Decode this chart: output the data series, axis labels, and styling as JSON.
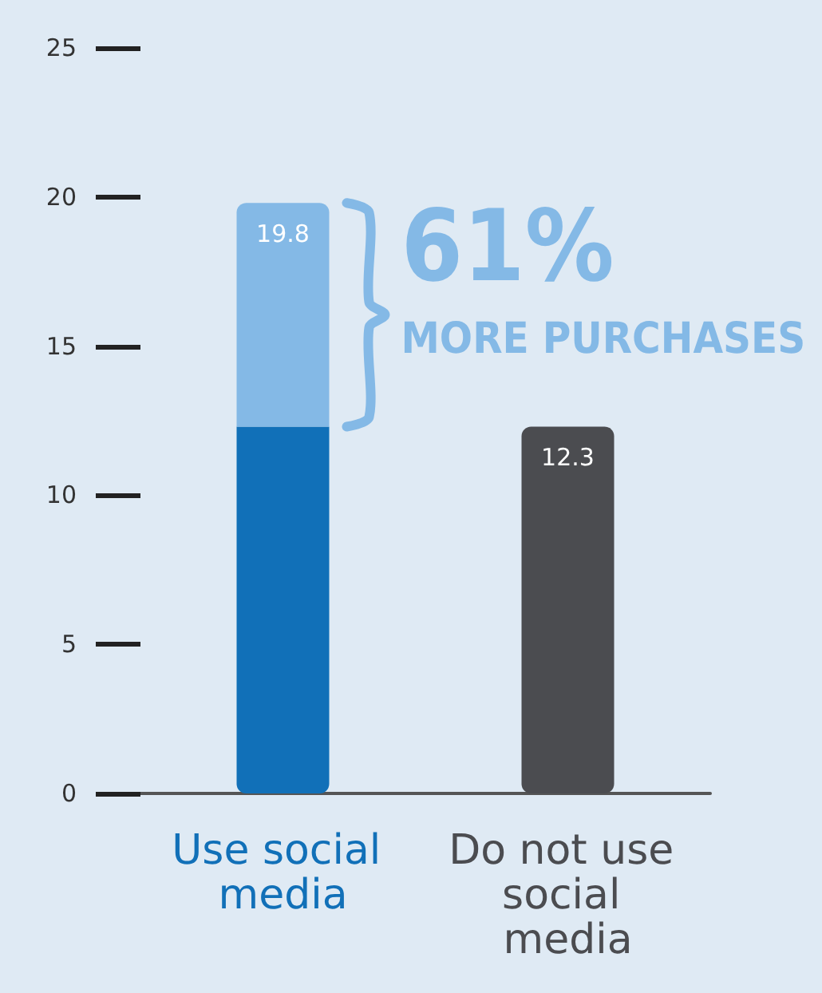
{
  "chart_data": {
    "type": "bar",
    "stacked": true,
    "categories": [
      "Use social media",
      "Do not use social media"
    ],
    "series": [
      {
        "colors": [
          "#1170b8",
          "#4b4c50"
        ],
        "values": [
          12.3,
          12.3
        ]
      },
      {
        "color": "#84b9e6",
        "values": [
          7.5,
          null
        ]
      }
    ],
    "totals": [
      "19.8",
      "12.3"
    ],
    "ylim": [
      0,
      25
    ],
    "yticks": [
      0,
      5,
      10,
      15,
      20,
      25
    ],
    "grid": false,
    "annotations": [
      "61%",
      "MORE PURCHASES"
    ]
  }
}
